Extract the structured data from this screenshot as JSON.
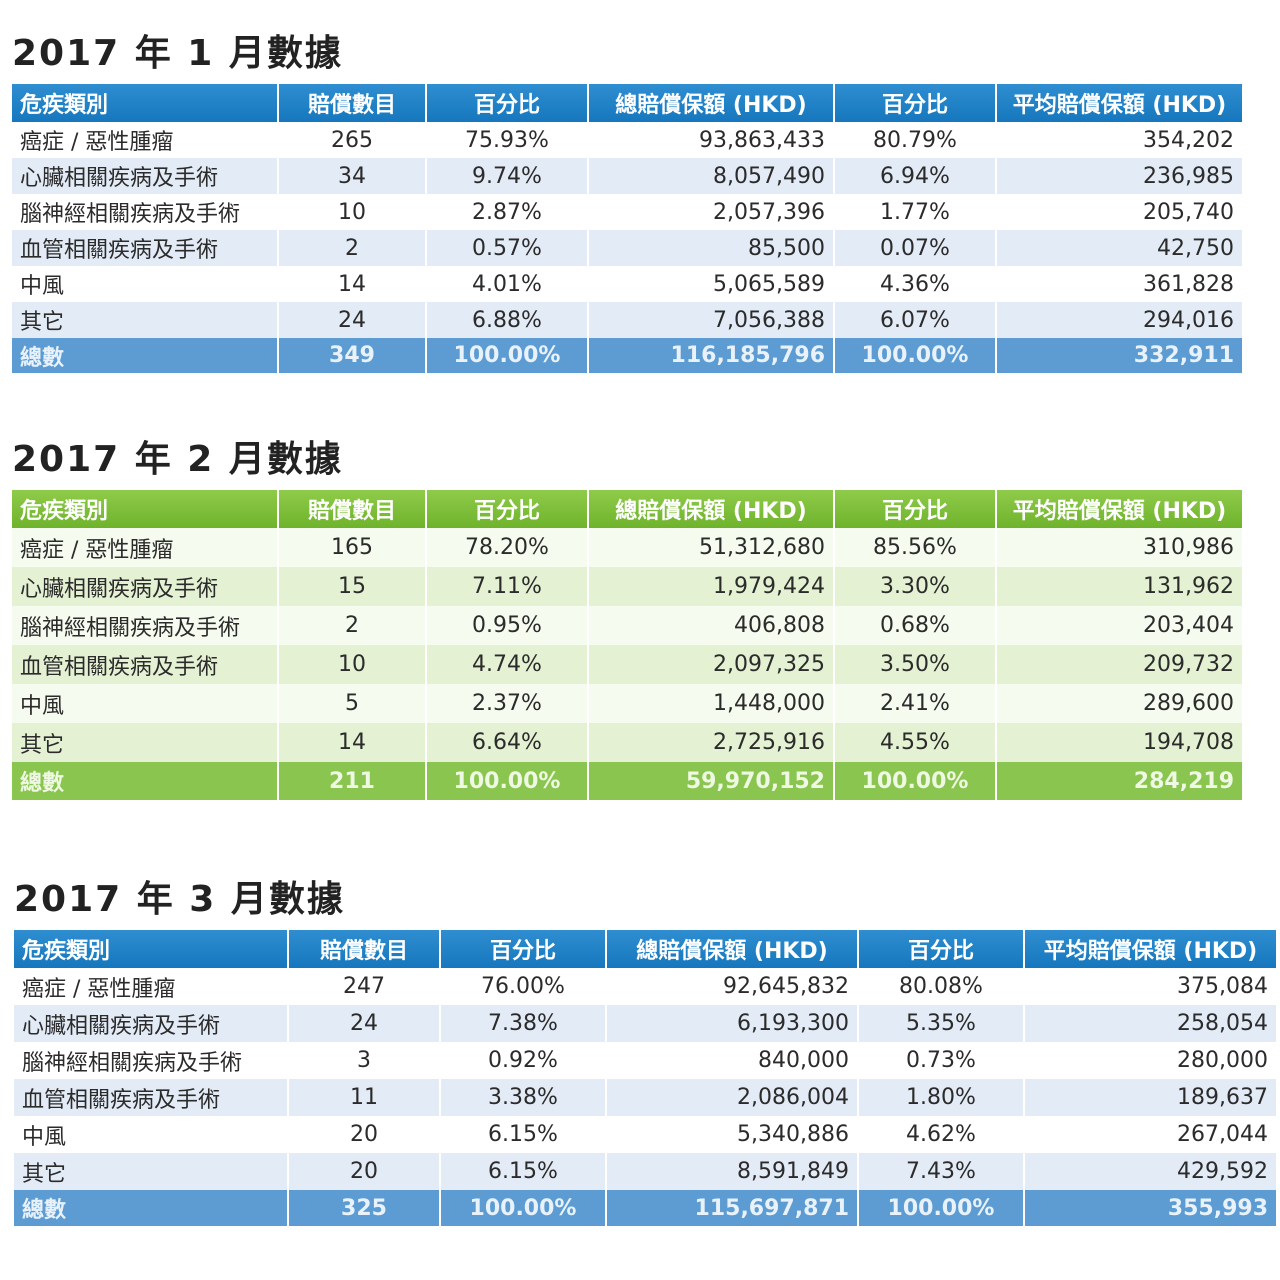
{
  "headers": [
    "危疾類別",
    "賠償數目",
    "百分比",
    "總賠償保額 (HKD)",
    "百分比",
    "平均賠償保額 (HKD)"
  ],
  "sections": [
    {
      "title": "2017 年 1 月數據",
      "rows": [
        [
          "癌症 / 惡性腫瘤",
          "265",
          "75.93%",
          "93,863,433",
          "80.79%",
          "354,202"
        ],
        [
          "心臟相關疾病及手術",
          "34",
          "9.74%",
          "8,057,490",
          "6.94%",
          "236,985"
        ],
        [
          "腦神經相關疾病及手術",
          "10",
          "2.87%",
          "2,057,396",
          "1.77%",
          "205,740"
        ],
        [
          "血管相關疾病及手術",
          "2",
          "0.57%",
          "85,500",
          "0.07%",
          "42,750"
        ],
        [
          "中風",
          "14",
          "4.01%",
          "5,065,589",
          "4.36%",
          "361,828"
        ],
        [
          "其它",
          "24",
          "6.88%",
          "7,056,388",
          "6.07%",
          "294,016"
        ]
      ],
      "total": [
        "總數",
        "349",
        "100.00%",
        "116,185,796",
        "100.00%",
        "332,911"
      ]
    },
    {
      "title": "2017 年 2 月數據",
      "rows": [
        [
          "癌症 / 惡性腫瘤",
          "165",
          "78.20%",
          "51,312,680",
          "85.56%",
          "310,986"
        ],
        [
          "心臟相關疾病及手術",
          "15",
          "7.11%",
          "1,979,424",
          "3.30%",
          "131,962"
        ],
        [
          "腦神經相關疾病及手術",
          "2",
          "0.95%",
          "406,808",
          "0.68%",
          "203,404"
        ],
        [
          "血管相關疾病及手術",
          "10",
          "4.74%",
          "2,097,325",
          "3.50%",
          "209,732"
        ],
        [
          "中風",
          "5",
          "2.37%",
          "1,448,000",
          "2.41%",
          "289,600"
        ],
        [
          "其它",
          "14",
          "6.64%",
          "2,725,916",
          "4.55%",
          "194,708"
        ]
      ],
      "total": [
        "總數",
        "211",
        "100.00%",
        "59,970,152",
        "100.00%",
        "284,219"
      ]
    },
    {
      "title": "2017 年 3 月數據",
      "rows": [
        [
          "癌症 / 惡性腫瘤",
          "247",
          "76.00%",
          "92,645,832",
          "80.08%",
          "375,084"
        ],
        [
          "心臟相關疾病及手術",
          "24",
          "7.38%",
          "6,193,300",
          "5.35%",
          "258,054"
        ],
        [
          "腦神經相關疾病及手術",
          "3",
          "0.92%",
          "840,000",
          "0.73%",
          "280,000"
        ],
        [
          "血管相關疾病及手術",
          "11",
          "3.38%",
          "2,086,004",
          "1.80%",
          "189,637"
        ],
        [
          "中風",
          "20",
          "6.15%",
          "5,340,886",
          "4.62%",
          "267,044"
        ],
        [
          "其它",
          "20",
          "6.15%",
          "8,591,849",
          "7.43%",
          "429,592"
        ]
      ],
      "total": [
        "總數",
        "325",
        "100.00%",
        "115,697,871",
        "100.00%",
        "355,993"
      ]
    }
  ],
  "colors": {
    "blue_header": "#1677be",
    "blue_total": "#5c9cd2",
    "green_header": "#6fb32c",
    "green_total": "#8ac54f"
  }
}
